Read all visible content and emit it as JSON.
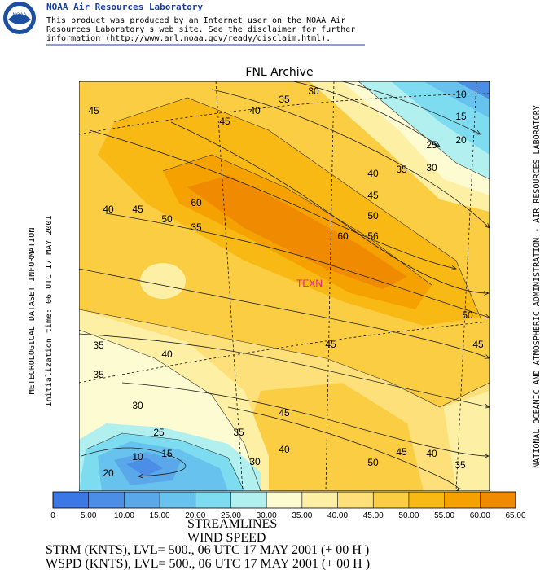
{
  "header": {
    "title": "NOAA Air Resources Laboratory",
    "logo": "NOAA",
    "disclaimer": [
      "This product was produced by an Internet user on the NOAA Air",
      "Resources Laboratory's web site.  See the disclaimer for further",
      "information (http://www.arl.noaa.gov/ready/disclaim.html)."
    ]
  },
  "map": {
    "title": "FNL Archive",
    "station": "TEXN",
    "left_labels": [
      "METEOROLOGICAL DATASET INFORMATION",
      "Initialization time: 06 UTC 17 MAY 2001"
    ],
    "right_label": "NATIONAL OCEANIC AND ATMOSPHERIC ADMINISTRATION - AIR RESOURCES LABORATORY",
    "contour_labels": [
      45,
      40,
      35,
      30,
      10,
      15,
      20,
      25,
      35,
      30,
      40,
      45,
      45,
      50,
      56,
      60,
      60,
      35,
      50,
      45,
      40,
      50,
      45,
      45,
      40,
      35,
      35,
      30,
      45,
      25,
      35,
      10,
      15,
      20,
      30,
      40,
      45,
      40,
      50,
      35
    ]
  },
  "colorbar": {
    "colors": [
      "#3b78e6",
      "#4b8ee8",
      "#5aa8ea",
      "#68c2ee",
      "#7edcf0",
      "#b2f0f0",
      "#fdfbd2",
      "#fdf0a4",
      "#fde07a",
      "#fbcd42",
      "#f8b914",
      "#f5a200",
      "#f08a00"
    ],
    "ticks": [
      0,
      {
        "value": 5,
        "label": "5.00"
      },
      {
        "value": 10,
        "label": "10.00"
      },
      {
        "value": 15,
        "label": "15.00"
      },
      {
        "value": 20,
        "label": "20.00"
      },
      {
        "value": 25,
        "label": "25.00"
      },
      {
        "value": 30,
        "label": "30.00"
      },
      {
        "value": 35,
        "label": "35.00"
      },
      {
        "value": 40,
        "label": "40.00"
      },
      {
        "value": 45,
        "label": "45.00"
      },
      {
        "value": 50,
        "label": "50.00"
      },
      {
        "value": 55,
        "label": "55.00"
      },
      {
        "value": 60,
        "label": "60.00"
      },
      {
        "value": 65,
        "label": "65.00"
      }
    ],
    "lim": [
      0,
      65
    ]
  },
  "footer": [
    "STREAMLINES",
    "WIND SPEED",
    "STRM (KNTS),  LVL= 500., 06 UTC 17 MAY 2001 (+ 00 H )",
    "WSPD (KNTS),  LVL= 500., 06 UTC 17 MAY 2001 (+ 00 H )"
  ]
}
